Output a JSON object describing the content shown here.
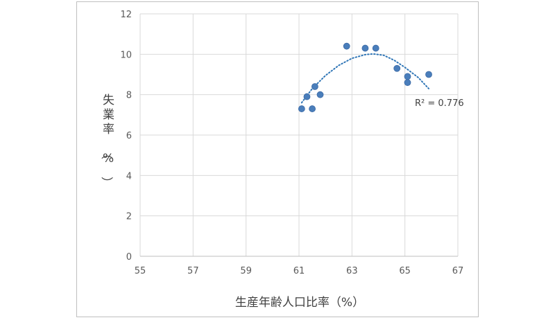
{
  "chart_data": {
    "type": "scatter",
    "title": "",
    "xlabel": "生産年齢人口比率（%）",
    "ylabel": "失業率（%）",
    "xlim": [
      55,
      67
    ],
    "ylim": [
      0,
      12
    ],
    "xticks": [
      "55",
      "57",
      "59",
      "61",
      "63",
      "65",
      "67"
    ],
    "yticks": [
      "0",
      "2",
      "4",
      "6",
      "8",
      "10",
      "12"
    ],
    "grid": true,
    "legend": "none",
    "marker_color": "#4a7ebb",
    "trendline_color": "#2e75b6",
    "series": [
      {
        "points": [
          {
            "x": 61.1,
            "y": 7.3
          },
          {
            "x": 61.3,
            "y": 7.9
          },
          {
            "x": 61.5,
            "y": 7.3
          },
          {
            "x": 61.6,
            "y": 8.4
          },
          {
            "x": 61.8,
            "y": 8.0
          },
          {
            "x": 62.8,
            "y": 10.4
          },
          {
            "x": 63.5,
            "y": 10.3
          },
          {
            "x": 63.9,
            "y": 10.3
          },
          {
            "x": 64.7,
            "y": 9.3
          },
          {
            "x": 65.1,
            "y": 8.9
          },
          {
            "x": 65.1,
            "y": 8.6
          },
          {
            "x": 65.9,
            "y": 9.0
          }
        ]
      }
    ],
    "trendline": {
      "type": "polynomial-2",
      "x_range": [
        61.1,
        65.9
      ],
      "samples": [
        {
          "x": 61.1,
          "y": 7.6
        },
        {
          "x": 61.5,
          "y": 8.3
        },
        {
          "x": 62.0,
          "y": 8.95
        },
        {
          "x": 62.5,
          "y": 9.45
        },
        {
          "x": 63.0,
          "y": 9.8
        },
        {
          "x": 63.5,
          "y": 9.98
        },
        {
          "x": 63.8,
          "y": 10.02
        },
        {
          "x": 64.2,
          "y": 9.95
        },
        {
          "x": 64.6,
          "y": 9.7
        },
        {
          "x": 65.0,
          "y": 9.35
        },
        {
          "x": 65.5,
          "y": 8.85
        },
        {
          "x": 65.9,
          "y": 8.3
        }
      ]
    },
    "annotations": [
      {
        "text": "R² = 0.776"
      }
    ]
  }
}
